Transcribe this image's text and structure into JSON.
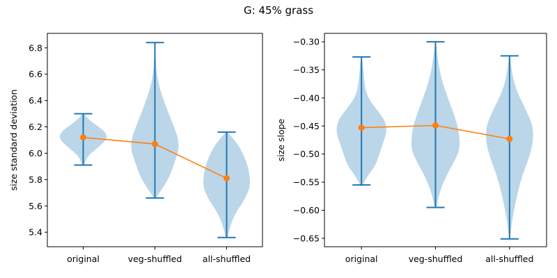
{
  "figure": {
    "title": "G: 45% grass",
    "colors": {
      "violin": "#1f77b4",
      "mean_line": "#ff7f0e"
    }
  },
  "chart_data": [
    {
      "type": "violin",
      "categories": [
        "original",
        "veg-shuffled",
        "all-shuffled"
      ],
      "xlabel": "",
      "ylabel": "size standard deviation",
      "ylim": [
        5.29,
        6.91
      ],
      "yticks": [
        "5.4",
        "5.6",
        "5.8",
        "6.0",
        "6.2",
        "6.4",
        "6.6",
        "6.8"
      ],
      "yticks_values": [
        5.4,
        5.6,
        5.8,
        6.0,
        6.2,
        6.4,
        6.6,
        6.8
      ],
      "min": [
        5.91,
        5.66,
        5.36
      ],
      "max": [
        6.3,
        6.84,
        6.16
      ],
      "mean": [
        6.12,
        6.07,
        5.81
      ],
      "density": [
        [
          [
            5.91,
            0.02
          ],
          [
            5.98,
            0.1
          ],
          [
            6.05,
            0.35
          ],
          [
            6.1,
            0.5
          ],
          [
            6.14,
            0.52
          ],
          [
            6.18,
            0.42
          ],
          [
            6.23,
            0.22
          ],
          [
            6.27,
            0.08
          ],
          [
            6.3,
            0.02
          ]
        ],
        [
          [
            5.66,
            0.02
          ],
          [
            5.72,
            0.14
          ],
          [
            5.82,
            0.32
          ],
          [
            5.92,
            0.42
          ],
          [
            6.02,
            0.52
          ],
          [
            6.1,
            0.52
          ],
          [
            6.2,
            0.42
          ],
          [
            6.32,
            0.28
          ],
          [
            6.45,
            0.14
          ],
          [
            6.6,
            0.03
          ],
          [
            6.84,
            0.01
          ]
        ],
        [
          [
            5.36,
            0.02
          ],
          [
            5.45,
            0.08
          ],
          [
            5.55,
            0.2
          ],
          [
            5.65,
            0.4
          ],
          [
            5.75,
            0.52
          ],
          [
            5.85,
            0.5
          ],
          [
            5.95,
            0.42
          ],
          [
            6.05,
            0.28
          ],
          [
            6.12,
            0.12
          ],
          [
            6.16,
            0.02
          ]
        ]
      ]
    },
    {
      "type": "violin",
      "categories": [
        "original",
        "veg-shuffled",
        "all-shuffled"
      ],
      "xlabel": "",
      "ylabel": "size slope",
      "ylim": [
        -0.665,
        -0.285
      ],
      "yticks": [
        "−0.65",
        "−0.60",
        "−0.55",
        "−0.50",
        "−0.45",
        "−0.40",
        "−0.35",
        "−0.30"
      ],
      "yticks_values": [
        -0.65,
        -0.6,
        -0.55,
        -0.5,
        -0.45,
        -0.4,
        -0.35,
        -0.3
      ],
      "min": [
        -0.555,
        -0.595,
        -0.651
      ],
      "max": [
        -0.327,
        -0.3,
        -0.325
      ],
      "mean": [
        -0.453,
        -0.449,
        -0.473
      ],
      "density": [
        [
          [
            -0.555,
            0.03
          ],
          [
            -0.54,
            0.12
          ],
          [
            -0.52,
            0.3
          ],
          [
            -0.5,
            0.38
          ],
          [
            -0.48,
            0.46
          ],
          [
            -0.46,
            0.54
          ],
          [
            -0.44,
            0.5
          ],
          [
            -0.42,
            0.32
          ],
          [
            -0.4,
            0.14
          ],
          [
            -0.38,
            0.07
          ],
          [
            -0.35,
            0.04
          ],
          [
            -0.327,
            0.01
          ]
        ],
        [
          [
            -0.595,
            0.02
          ],
          [
            -0.57,
            0.08
          ],
          [
            -0.54,
            0.22
          ],
          [
            -0.51,
            0.42
          ],
          [
            -0.49,
            0.52
          ],
          [
            -0.46,
            0.5
          ],
          [
            -0.43,
            0.4
          ],
          [
            -0.4,
            0.26
          ],
          [
            -0.37,
            0.14
          ],
          [
            -0.34,
            0.06
          ],
          [
            -0.3,
            0.01
          ]
        ],
        [
          [
            -0.651,
            0.01
          ],
          [
            -0.62,
            0.05
          ],
          [
            -0.58,
            0.14
          ],
          [
            -0.54,
            0.26
          ],
          [
            -0.51,
            0.4
          ],
          [
            -0.48,
            0.5
          ],
          [
            -0.45,
            0.5
          ],
          [
            -0.42,
            0.34
          ],
          [
            -0.39,
            0.16
          ],
          [
            -0.36,
            0.06
          ],
          [
            -0.325,
            0.01
          ]
        ]
      ]
    }
  ]
}
